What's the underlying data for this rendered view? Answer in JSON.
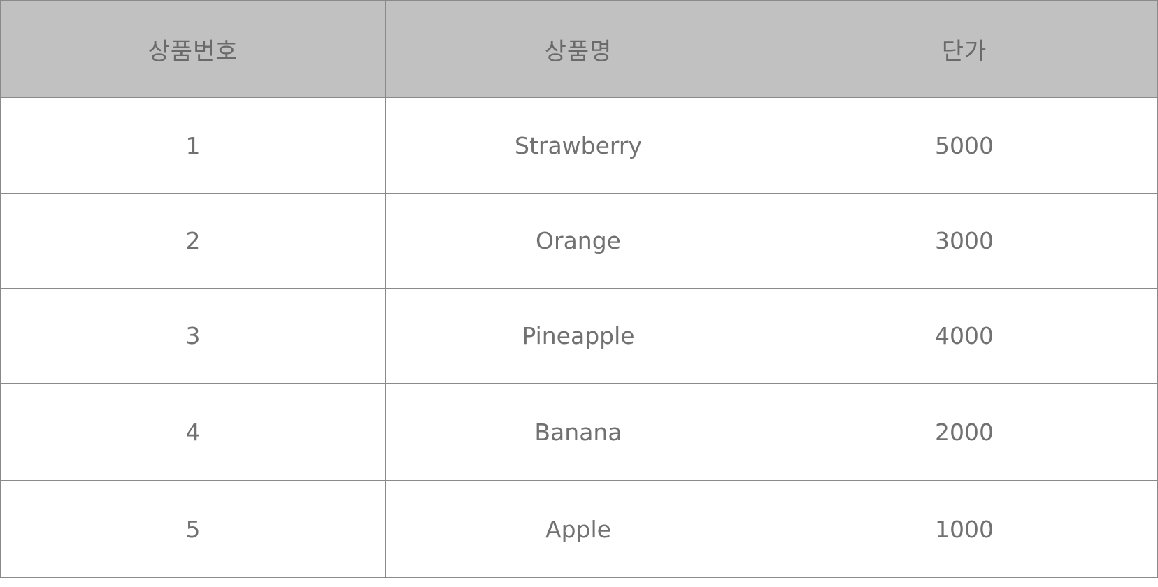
{
  "table": {
    "headers": [
      "상품번호",
      "상품명",
      "단가"
    ],
    "rows": [
      [
        "1",
        "Strawberry",
        "5000"
      ],
      [
        "2",
        "Orange",
        "3000"
      ],
      [
        "3",
        "Pineapple",
        "4000"
      ],
      [
        "4",
        "Banana",
        "2000"
      ],
      [
        "5",
        "Apple",
        "1000"
      ]
    ]
  },
  "colors": {
    "header_background": "#c1c1c1",
    "border": "#8a8a8a",
    "text": "#6e6e6e"
  }
}
